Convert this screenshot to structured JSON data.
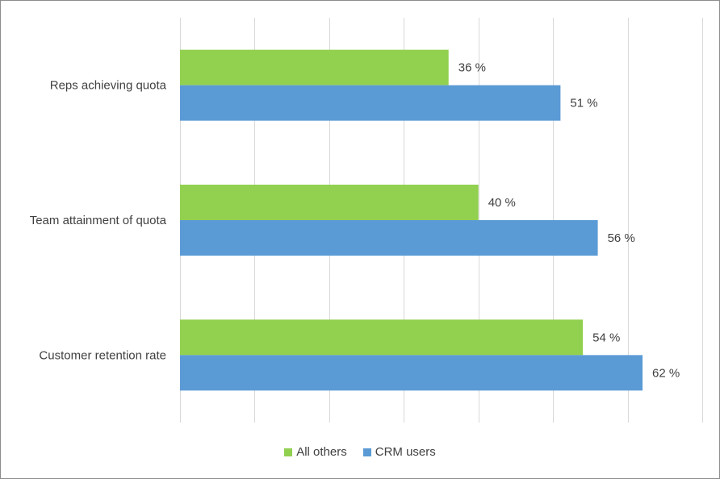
{
  "chart_data": {
    "type": "bar",
    "orientation": "horizontal",
    "categories": [
      "Reps achieving quota",
      "Team attainment of quota",
      "Customer retention rate"
    ],
    "series": [
      {
        "name": "All others",
        "values": [
          36,
          40,
          54
        ],
        "color": "#92d050"
      },
      {
        "name": "CRM users",
        "values": [
          51,
          56,
          62
        ],
        "color": "#5b9bd5"
      }
    ],
    "value_labels": {
      "All others": [
        "36 %",
        "40 %",
        "54 %"
      ],
      "CRM users": [
        "51 %",
        "56 %",
        "62 %"
      ]
    },
    "xlim": [
      0,
      70
    ],
    "grid": true,
    "legend_position": "bottom",
    "title": "",
    "xlabel": "",
    "ylabel": ""
  }
}
